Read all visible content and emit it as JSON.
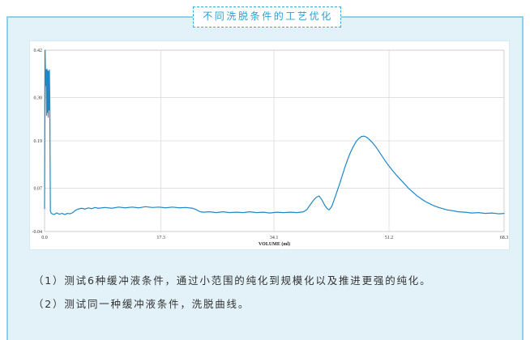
{
  "title": "不同洗脱条件的工艺优化",
  "notes": [
    "（1）测试6种缓冲液条件，通过小范围的纯化到规模化以及推进更强的纯化。",
    "（2）测试同一种缓冲液条件，洗脱曲线。"
  ],
  "colors": {
    "accent": "#2a9fd0",
    "card_border": "#8fd0e8",
    "card_background": "#e3f2f9",
    "line": "#1e88c6"
  },
  "chart_data": {
    "type": "line",
    "title": "",
    "xlabel": "VOLUME (ml)",
    "ylabel": "",
    "xlim": [
      0,
      68.3
    ],
    "ylim": [
      -0.04,
      0.42
    ],
    "xticks": [
      "0.0",
      "17.3",
      "34.1",
      "51.2",
      "68.3"
    ],
    "yticks": [
      "0.42",
      "0.30",
      "0.19",
      "0.07",
      "-0.04"
    ],
    "grid": true,
    "legend": "none",
    "series": [
      {
        "points": [
          [
            0,
            0.018
          ],
          [
            0.08,
            0.42
          ],
          [
            0.16,
            0.33
          ],
          [
            0.24,
            0.37
          ],
          [
            0.3,
            0.255
          ],
          [
            0.36,
            0.372
          ],
          [
            0.42,
            0.262
          ],
          [
            0.48,
            0.368
          ],
          [
            0.54,
            0.25
          ],
          [
            0.6,
            0.366
          ],
          [
            0.66,
            0.268
          ],
          [
            0.72,
            0.37
          ],
          [
            0.78,
            0.29
          ],
          [
            0.86,
            0.012
          ],
          [
            1.0,
            0.006
          ],
          [
            1.4,
            0.003
          ],
          [
            1.8,
            0.007
          ],
          [
            2.2,
            0.004
          ],
          [
            2.6,
            0.006
          ],
          [
            3.0,
            0.003
          ],
          [
            3.4,
            0.006
          ],
          [
            3.8,
            0.005
          ],
          [
            4.2,
            0.008
          ],
          [
            4.6,
            0.014
          ],
          [
            5.0,
            0.017
          ],
          [
            5.5,
            0.019
          ],
          [
            6.0,
            0.017
          ],
          [
            6.5,
            0.02
          ],
          [
            7.0,
            0.018
          ],
          [
            7.5,
            0.021
          ],
          [
            8.0,
            0.019
          ],
          [
            9.0,
            0.021
          ],
          [
            10.0,
            0.019
          ],
          [
            11.0,
            0.022
          ],
          [
            12.0,
            0.02
          ],
          [
            13.0,
            0.022
          ],
          [
            14.0,
            0.02
          ],
          [
            15.0,
            0.023
          ],
          [
            16.0,
            0.021
          ],
          [
            17.0,
            0.022
          ],
          [
            18.0,
            0.02
          ],
          [
            19.0,
            0.022
          ],
          [
            20.0,
            0.02
          ],
          [
            21.0,
            0.021
          ],
          [
            22.0,
            0.019
          ],
          [
            22.5,
            0.016
          ],
          [
            23.0,
            0.011
          ],
          [
            23.5,
            0.009
          ],
          [
            24.5,
            0.01
          ],
          [
            25.5,
            0.008
          ],
          [
            26.5,
            0.01
          ],
          [
            27.5,
            0.008
          ],
          [
            28.5,
            0.009
          ],
          [
            29.5,
            0.008
          ],
          [
            30.5,
            0.01
          ],
          [
            31.5,
            0.008
          ],
          [
            32.5,
            0.009
          ],
          [
            33.5,
            0.007
          ],
          [
            34.5,
            0.009
          ],
          [
            35.5,
            0.008
          ],
          [
            36.5,
            0.009
          ],
          [
            37.5,
            0.008
          ],
          [
            38.5,
            0.01
          ],
          [
            39.0,
            0.016
          ],
          [
            39.5,
            0.028
          ],
          [
            40.0,
            0.04
          ],
          [
            40.4,
            0.047
          ],
          [
            40.8,
            0.05
          ],
          [
            41.2,
            0.041
          ],
          [
            41.6,
            0.028
          ],
          [
            42.0,
            0.018
          ],
          [
            42.3,
            0.015
          ],
          [
            42.7,
            0.024
          ],
          [
            43.1,
            0.043
          ],
          [
            43.5,
            0.063
          ],
          [
            43.9,
            0.083
          ],
          [
            44.3,
            0.105
          ],
          [
            44.7,
            0.126
          ],
          [
            45.1,
            0.145
          ],
          [
            45.5,
            0.162
          ],
          [
            45.9,
            0.176
          ],
          [
            46.3,
            0.188
          ],
          [
            46.7,
            0.196
          ],
          [
            47.1,
            0.201
          ],
          [
            47.5,
            0.202
          ],
          [
            47.9,
            0.199
          ],
          [
            48.3,
            0.193
          ],
          [
            48.7,
            0.186
          ],
          [
            49.1,
            0.178
          ],
          [
            49.6,
            0.166
          ],
          [
            50.1,
            0.153
          ],
          [
            50.6,
            0.14
          ],
          [
            51.2,
            0.126
          ],
          [
            51.8,
            0.113
          ],
          [
            52.4,
            0.101
          ],
          [
            53.0,
            0.09
          ],
          [
            53.6,
            0.079
          ],
          [
            54.2,
            0.068
          ],
          [
            54.8,
            0.059
          ],
          [
            55.4,
            0.05
          ],
          [
            56.0,
            0.043
          ],
          [
            56.6,
            0.036
          ],
          [
            57.2,
            0.031
          ],
          [
            57.8,
            0.026
          ],
          [
            58.4,
            0.022
          ],
          [
            59.0,
            0.019
          ],
          [
            59.8,
            0.015
          ],
          [
            60.6,
            0.013
          ],
          [
            61.5,
            0.01
          ],
          [
            62.5,
            0.009
          ],
          [
            63.5,
            0.007
          ],
          [
            64.5,
            0.008
          ],
          [
            65.5,
            0.006
          ],
          [
            66.5,
            0.007
          ],
          [
            67.5,
            0.005
          ],
          [
            68.3,
            0.006
          ]
        ]
      }
    ]
  }
}
